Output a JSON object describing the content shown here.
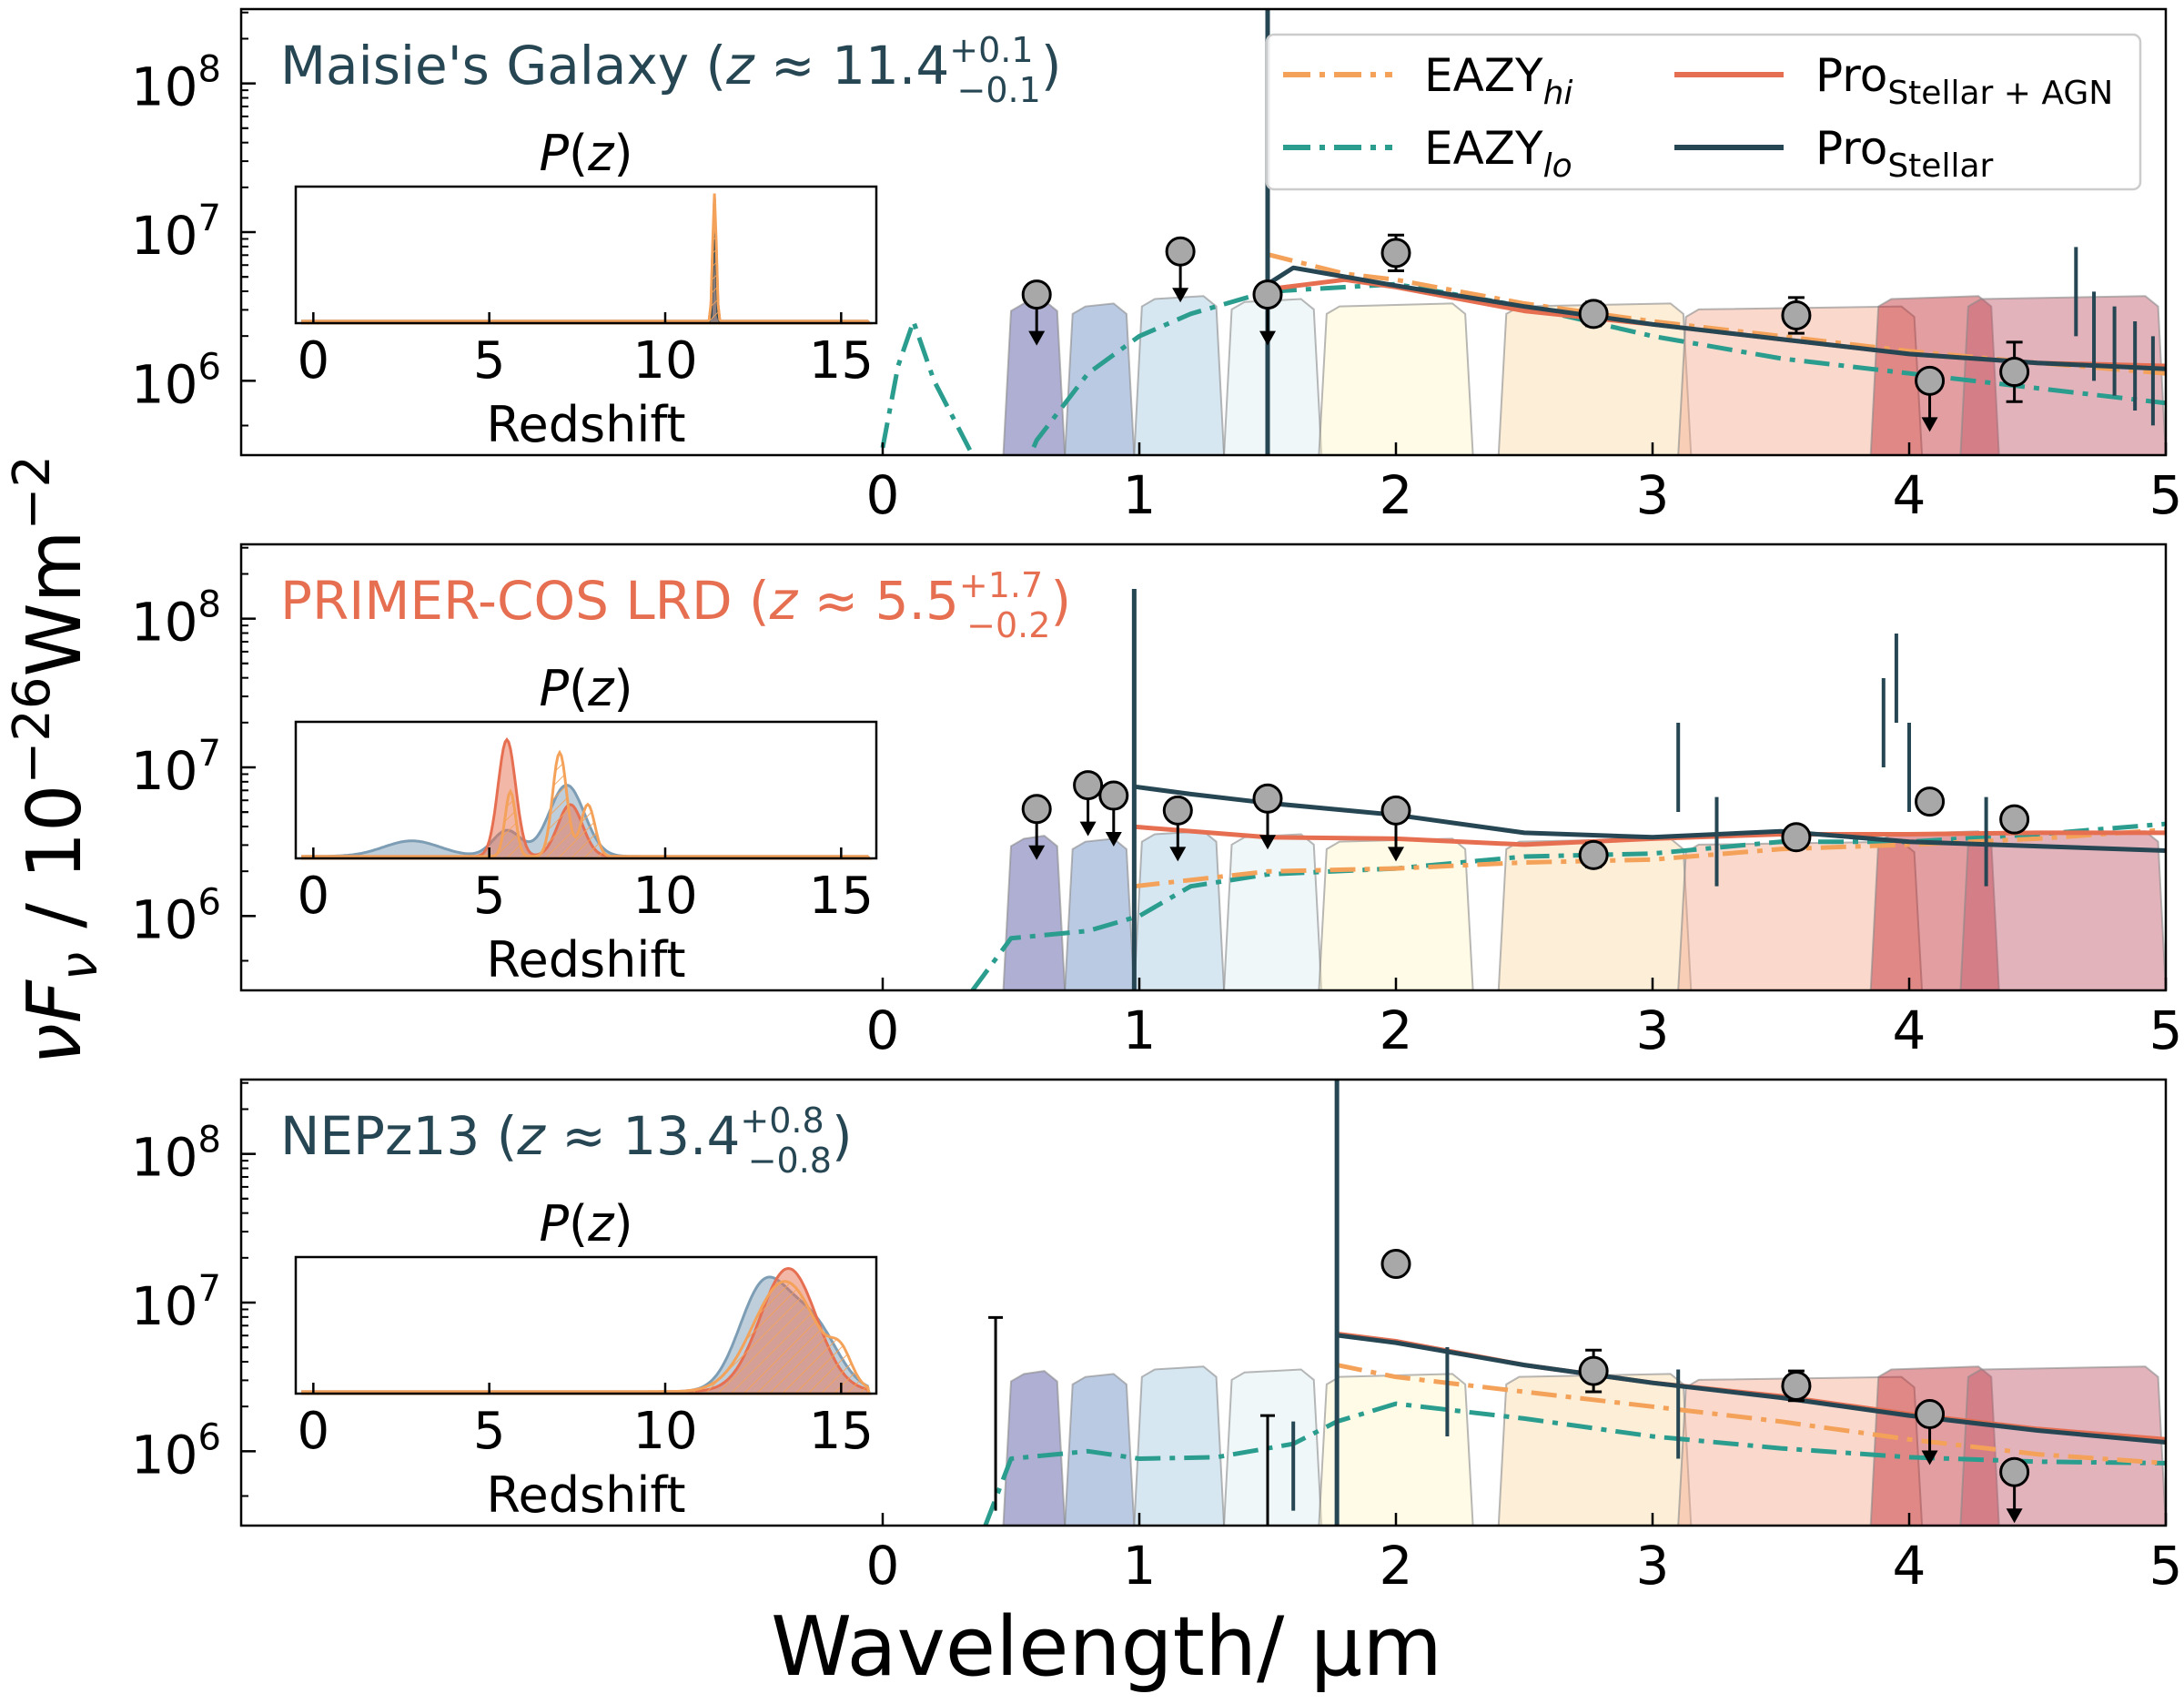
{
  "figure": {
    "xlabel": "Wavelength/ µm",
    "ylabel_main": "νF",
    "ylabel_sub": "ν",
    "ylabel_unit": " / 10",
    "ylabel_exp1": "−26",
    "ylabel_unit2": "Wm",
    "ylabel_exp2": "−2"
  },
  "legend": {
    "items": [
      {
        "label": "EAZY",
        "sub": "hi",
        "color": "#f4a259",
        "style": "dashdot"
      },
      {
        "label": "EAZY",
        "sub": "lo",
        "color": "#2a9d8f",
        "style": "dashdot"
      },
      {
        "label": "Pro",
        "sub": "Stellar + AGN",
        "color": "#e76f51",
        "style": "solid"
      },
      {
        "label": "Pro",
        "sub": "Stellar",
        "color": "#264653",
        "style": "solid"
      }
    ]
  },
  "filter_colors": [
    "#4b4e9d",
    "#6989c0",
    "#a7c9e2",
    "#dcedf1",
    "#fff6c8",
    "#f9d9a7",
    "#f3a98d",
    "#c0282f",
    "#c2566b"
  ],
  "chart_data": [
    {
      "type": "line",
      "name_prefix": "Maisie's Galaxy (",
      "name_z": "z",
      "name_approx": " ≈ 11.4",
      "name_sup": "+0.1",
      "name_sub": "−0.1",
      "name_suffix": ")",
      "name_color": "#264653",
      "xlim": [
        -2.5,
        5
      ],
      "ylim_log10": [
        5.5,
        8.5
      ],
      "yscale": "log",
      "xticks": [
        0,
        1,
        2,
        3,
        4,
        5
      ],
      "yticks": [
        {
          "label": "10",
          "exp": "6",
          "v": 6
        },
        {
          "label": "10",
          "exp": "7",
          "v": 7
        },
        {
          "label": "10",
          "exp": "8",
          "v": 8
        }
      ],
      "break_um": 1.5,
      "lyman_line_top": 8.6,
      "stellar": [
        [
          1.5,
          6.65
        ],
        [
          1.6,
          6.76
        ],
        [
          1.8,
          6.7
        ],
        [
          2.0,
          6.64
        ],
        [
          2.5,
          6.5
        ],
        [
          3.0,
          6.38
        ],
        [
          3.5,
          6.28
        ],
        [
          4.0,
          6.18
        ],
        [
          4.5,
          6.12
        ],
        [
          5.0,
          6.08
        ]
      ],
      "agn": [
        [
          1.52,
          6.62
        ],
        [
          1.8,
          6.68
        ],
        [
          2.0,
          6.63
        ],
        [
          2.5,
          6.47
        ],
        [
          3.0,
          6.38
        ],
        [
          3.5,
          6.28
        ],
        [
          4.0,
          6.18
        ],
        [
          4.5,
          6.12
        ],
        [
          5.0,
          6.1
        ]
      ],
      "eazy_hi": [
        [
          1.5,
          6.85
        ],
        [
          1.8,
          6.72
        ],
        [
          2.0,
          6.68
        ],
        [
          2.5,
          6.52
        ],
        [
          3.0,
          6.4
        ],
        [
          3.5,
          6.3
        ],
        [
          4.0,
          6.2
        ],
        [
          4.5,
          6.12
        ],
        [
          5.0,
          6.05
        ]
      ],
      "eazy_lo": [
        [
          0.0,
          5.55
        ],
        [
          0.06,
          6.1
        ],
        [
          0.12,
          6.4
        ],
        [
          0.2,
          6.0
        ],
        [
          0.35,
          5.5
        ],
        [
          0.5,
          5.2
        ],
        [
          0.6,
          5.6
        ],
        [
          0.8,
          6.05
        ],
        [
          1.0,
          6.3
        ],
        [
          1.2,
          6.45
        ],
        [
          1.5,
          6.6
        ],
        [
          2.0,
          6.65
        ],
        [
          2.5,
          6.5
        ],
        [
          3.0,
          6.3
        ],
        [
          3.5,
          6.15
        ],
        [
          4.0,
          6.05
        ],
        [
          4.5,
          5.95
        ],
        [
          5.0,
          5.85
        ]
      ],
      "spikes": [
        [
          4.65,
          6.9
        ],
        [
          4.72,
          6.6
        ],
        [
          4.8,
          6.5
        ],
        [
          4.88,
          6.4
        ],
        [
          4.95,
          6.3
        ]
      ],
      "points": [
        {
          "x": 0.6,
          "y": 6.58,
          "upper": true
        },
        {
          "x": 1.16,
          "y": 6.87,
          "upper": true
        },
        {
          "x": 1.5,
          "y": 6.58,
          "upper": true
        },
        {
          "x": 2.0,
          "y": 6.86,
          "err": 0.12
        },
        {
          "x": 2.77,
          "y": 6.45,
          "err": 0.08
        },
        {
          "x": 3.56,
          "y": 6.44,
          "err": 0.12
        },
        {
          "x": 4.08,
          "y": 6.0,
          "upper": true
        },
        {
          "x": 4.41,
          "y": 6.06,
          "err": 0.2
        }
      ],
      "pz": [
        {
          "color": "#e76f51",
          "peaks": [
            [
              11.4,
              0.9,
              0.05
            ]
          ],
          "hatch": false
        },
        {
          "color": "#264653",
          "peaks": [
            [
              11.4,
              0.95,
              0.04
            ]
          ],
          "hatch": false
        },
        {
          "color": "#f4a259",
          "peaks": [
            [
              11.4,
              1.0,
              0.05
            ]
          ],
          "hatch": true
        }
      ],
      "pz_title_p": "P(",
      "pz_title_z": "z",
      "pz_title_end": ")",
      "pz_xlabel": "Redshift",
      "pz_xticks": [
        "0",
        "5",
        "10",
        "15"
      ]
    },
    {
      "type": "line",
      "name_prefix": "PRIMER-COS LRD (",
      "name_z": "z",
      "name_approx": " ≈ 5.5",
      "name_sup": "+1.7",
      "name_sub": "−0.2",
      "name_suffix": ")",
      "name_color": "#e76f51",
      "xlim": [
        -2.5,
        5
      ],
      "ylim_log10": [
        5.5,
        8.5
      ],
      "yscale": "log",
      "xticks": [
        0,
        1,
        2,
        3,
        4,
        5
      ],
      "yticks": [
        {
          "label": "10",
          "exp": "6",
          "v": 6
        },
        {
          "label": "10",
          "exp": "7",
          "v": 7
        },
        {
          "label": "10",
          "exp": "8",
          "v": 8
        }
      ],
      "break_um": 0.98,
      "lyman_line_top": 8.2,
      "stellar": [
        [
          0.98,
          6.87
        ],
        [
          1.2,
          6.82
        ],
        [
          1.5,
          6.76
        ],
        [
          2.0,
          6.68
        ],
        [
          2.5,
          6.56
        ],
        [
          3.0,
          6.53
        ],
        [
          3.5,
          6.57
        ],
        [
          4.0,
          6.5
        ],
        [
          4.5,
          6.47
        ],
        [
          5.0,
          6.44
        ]
      ],
      "agn": [
        [
          0.98,
          6.6
        ],
        [
          1.5,
          6.53
        ],
        [
          2.0,
          6.52
        ],
        [
          2.5,
          6.48
        ],
        [
          3.0,
          6.52
        ],
        [
          3.5,
          6.55
        ],
        [
          4.0,
          6.55
        ],
        [
          4.5,
          6.56
        ],
        [
          5.0,
          6.56
        ]
      ],
      "eazy_hi": [
        [
          0.98,
          6.2
        ],
        [
          1.5,
          6.3
        ],
        [
          2.0,
          6.32
        ],
        [
          2.5,
          6.36
        ],
        [
          3.0,
          6.38
        ],
        [
          3.5,
          6.45
        ],
        [
          4.0,
          6.48
        ],
        [
          4.5,
          6.52
        ],
        [
          5.0,
          6.58
        ]
      ],
      "eazy_lo": [
        [
          0.35,
          5.5
        ],
        [
          0.5,
          5.85
        ],
        [
          0.8,
          5.9
        ],
        [
          1.0,
          6.0
        ],
        [
          1.2,
          6.2
        ],
        [
          1.5,
          6.28
        ],
        [
          2.0,
          6.32
        ],
        [
          2.5,
          6.4
        ],
        [
          3.0,
          6.42
        ],
        [
          3.5,
          6.5
        ],
        [
          4.0,
          6.5
        ],
        [
          4.5,
          6.55
        ],
        [
          5.0,
          6.62
        ]
      ],
      "spikes": [
        [
          3.1,
          7.3
        ],
        [
          3.25,
          6.8
        ],
        [
          3.9,
          7.6
        ],
        [
          3.95,
          7.9
        ],
        [
          4.0,
          7.3
        ],
        [
          4.3,
          6.8
        ]
      ],
      "points": [
        {
          "x": 0.6,
          "y": 6.72,
          "upper": true
        },
        {
          "x": 0.8,
          "y": 6.88,
          "upper": true
        },
        {
          "x": 0.9,
          "y": 6.81,
          "upper": true
        },
        {
          "x": 1.15,
          "y": 6.71,
          "upper": true
        },
        {
          "x": 1.5,
          "y": 6.79,
          "upper": true
        },
        {
          "x": 2.0,
          "y": 6.71,
          "upper": true
        },
        {
          "x": 2.77,
          "y": 6.41,
          "err": 0.08
        },
        {
          "x": 3.56,
          "y": 6.53,
          "err": 0.04
        },
        {
          "x": 4.08,
          "y": 6.77,
          "err": 0.04
        },
        {
          "x": 4.41,
          "y": 6.65,
          "err": 0.03
        }
      ],
      "pz": [
        {
          "color": "#7d9db5",
          "peaks": [
            [
              2.8,
              0.12,
              0.8
            ],
            [
              7.2,
              0.55,
              0.5
            ],
            [
              5.5,
              0.2,
              0.4
            ]
          ],
          "hatch": false
        },
        {
          "color": "#e76f51",
          "peaks": [
            [
              5.5,
              0.9,
              0.25
            ],
            [
              7.3,
              0.4,
              0.35
            ]
          ],
          "hatch": false
        },
        {
          "color": "#f4a259",
          "peaks": [
            [
              7.0,
              0.8,
              0.2
            ],
            [
              5.6,
              0.5,
              0.15
            ],
            [
              7.8,
              0.4,
              0.2
            ]
          ],
          "hatch": true
        }
      ],
      "pz_title_p": "P(",
      "pz_title_z": "z",
      "pz_title_end": ")",
      "pz_xlabel": "Redshift",
      "pz_xticks": [
        "0",
        "5",
        "10",
        "15"
      ]
    },
    {
      "type": "line",
      "name_prefix": "NEPz13 (",
      "name_z": "z",
      "name_approx": " ≈ 13.4",
      "name_sup": "+0.8",
      "name_sub": "−0.8",
      "name_suffix": ")",
      "name_color": "#264653",
      "xlim": [
        -2.5,
        5
      ],
      "ylim_log10": [
        5.5,
        8.5
      ],
      "yscale": "log",
      "xticks": [
        0,
        1,
        2,
        3,
        4,
        5
      ],
      "yticks": [
        {
          "label": "10",
          "exp": "6",
          "v": 6
        },
        {
          "label": "10",
          "exp": "7",
          "v": 7
        },
        {
          "label": "10",
          "exp": "8",
          "v": 8
        }
      ],
      "break_um": 1.77,
      "lyman_line_top": 8.6,
      "stellar": [
        [
          1.77,
          6.78
        ],
        [
          2.0,
          6.73
        ],
        [
          2.5,
          6.58
        ],
        [
          3.0,
          6.46
        ],
        [
          3.5,
          6.36
        ],
        [
          4.0,
          6.24
        ],
        [
          4.5,
          6.14
        ],
        [
          5.0,
          6.06
        ]
      ],
      "agn": [
        [
          1.77,
          6.79
        ],
        [
          2.0,
          6.74
        ],
        [
          2.5,
          6.58
        ],
        [
          3.0,
          6.46
        ],
        [
          3.5,
          6.37
        ],
        [
          4.0,
          6.25
        ],
        [
          4.5,
          6.15
        ],
        [
          5.0,
          6.08
        ]
      ],
      "eazy_hi": [
        [
          1.77,
          6.58
        ],
        [
          2.0,
          6.5
        ],
        [
          2.5,
          6.4
        ],
        [
          3.0,
          6.3
        ],
        [
          3.5,
          6.2
        ],
        [
          4.0,
          6.08
        ],
        [
          4.5,
          5.98
        ],
        [
          5.0,
          5.92
        ]
      ],
      "eazy_lo": [
        [
          0.4,
          5.5
        ],
        [
          0.5,
          5.95
        ],
        [
          0.8,
          6.0
        ],
        [
          1.0,
          5.95
        ],
        [
          1.3,
          5.96
        ],
        [
          1.6,
          6.05
        ],
        [
          1.77,
          6.2
        ],
        [
          2.0,
          6.32
        ],
        [
          2.5,
          6.22
        ],
        [
          3.0,
          6.1
        ],
        [
          3.5,
          6.02
        ],
        [
          4.0,
          5.96
        ],
        [
          4.5,
          5.93
        ],
        [
          5.0,
          5.92
        ]
      ],
      "spikes": [
        [
          1.6,
          6.2
        ],
        [
          2.2,
          6.7
        ],
        [
          3.1,
          6.55
        ]
      ],
      "points": [
        {
          "x": 0.44,
          "y": 5.6,
          "errup": 6.9,
          "barOnly": true
        },
        {
          "x": 1.5,
          "y": 5.5,
          "errup": 6.24,
          "barOnly": true
        },
        {
          "x": 2.0,
          "y": 7.26,
          "err": 0.07
        },
        {
          "x": 2.77,
          "y": 6.54,
          "err": 0.14
        },
        {
          "x": 3.56,
          "y": 6.44,
          "err": 0.1
        },
        {
          "x": 4.08,
          "y": 6.25,
          "upper": true
        },
        {
          "x": 4.41,
          "y": 5.86,
          "upper": true
        }
      ],
      "pz": [
        {
          "color": "#7d9db5",
          "peaks": [
            [
              12.8,
              0.8,
              0.7
            ],
            [
              14.2,
              0.5,
              0.7
            ]
          ],
          "hatch": false
        },
        {
          "color": "#e76f51",
          "peaks": [
            [
              13.5,
              0.95,
              0.8
            ]
          ],
          "hatch": false
        },
        {
          "color": "#f4a259",
          "peaks": [
            [
              13.4,
              0.85,
              0.9
            ],
            [
              15.0,
              0.2,
              0.3
            ]
          ],
          "hatch": true
        }
      ],
      "pz_title_p": "P(",
      "pz_title_z": "z",
      "pz_title_end": ")",
      "pz_xlabel": "Redshift",
      "pz_xticks": [
        "0",
        "5",
        "10",
        "15"
      ]
    }
  ]
}
